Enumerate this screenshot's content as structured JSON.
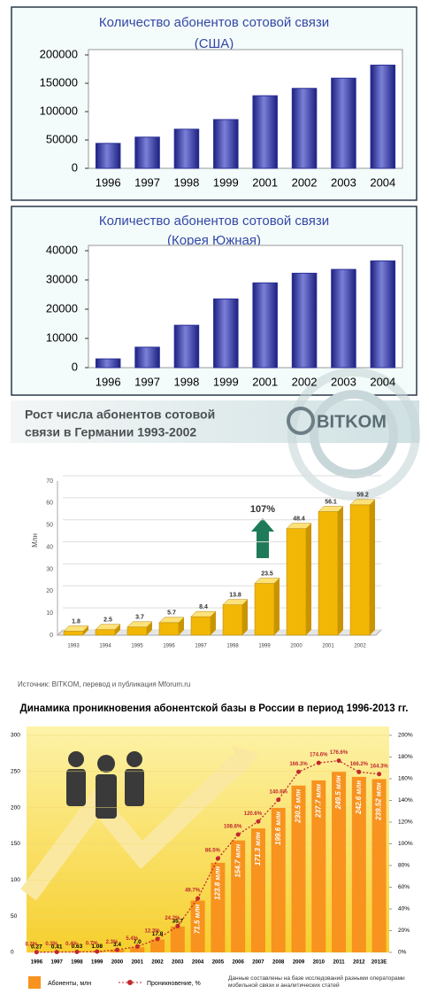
{
  "chart_data": [
    {
      "type": "bar",
      "title": "Количество абонентов сотовой связи",
      "subtitle": "(США)",
      "categories": [
        "1996",
        "1997",
        "1998",
        "1999",
        "2001",
        "2002",
        "2003",
        "2004"
      ],
      "values": [
        44000,
        55000,
        69000,
        86000,
        128000,
        141000,
        159000,
        182000
      ],
      "color": "#2a2f98",
      "ylim": [
        0,
        200000
      ],
      "yticks": [
        0,
        50000,
        100000,
        150000,
        200000
      ]
    },
    {
      "type": "bar",
      "title": "Количество абонентов сотовой связи",
      "subtitle": "(Корея Южная)",
      "categories": [
        "1996",
        "1997",
        "1998",
        "1999",
        "2001",
        "2002",
        "2003",
        "2004"
      ],
      "values": [
        3000,
        7000,
        14500,
        23500,
        29000,
        32300,
        33600,
        36500
      ],
      "color": "#2a2f98",
      "ylim": [
        0,
        40000
      ],
      "yticks": [
        0,
        10000,
        20000,
        30000,
        40000
      ]
    },
    {
      "type": "bar3d",
      "title": "Рост числа абонентов сотовой",
      "subtitle": "связи в Германии 1993-2002",
      "logo": "BITKOM",
      "ylabel": "Млн",
      "annotation": "107%",
      "source": "Источник: BITKOM, перевод и публикация Mforum.ru",
      "categories": [
        "1993",
        "1994",
        "1995",
        "1996",
        "1997",
        "1998",
        "1999",
        "2000",
        "2001",
        "2002"
      ],
      "values": [
        1.8,
        2.5,
        3.7,
        5.7,
        8.4,
        13.8,
        23.5,
        48.4,
        56.1,
        59.2
      ],
      "color": "#f2b705",
      "ylim": [
        0,
        70
      ],
      "yticks": [
        0,
        10,
        20,
        30,
        40,
        50,
        60,
        70
      ]
    },
    {
      "type": "bar-line",
      "title": "Динамика проникновения абонентской базы в России в период 1996-2013 гг.",
      "note": "Данные составлены на базе исследований разными операторами мобильной связи и аналитических статей",
      "categories": [
        "1996",
        "1997",
        "1998",
        "1999",
        "2000",
        "2001",
        "2002",
        "2003",
        "2004",
        "2005",
        "2006",
        "2007",
        "2008",
        "2009",
        "2010",
        "2011",
        "2012",
        "2013E"
      ],
      "series": [
        {
          "name": "Абоненты, млн",
          "color": "#f7931e",
          "values": [
            0.27,
            0.41,
            0.63,
            1.08,
            3.4,
            7.0,
            17.8,
            35.7,
            71.5,
            123.8,
            154.7,
            171.3,
            199.6,
            230.5,
            237.7,
            249.5,
            242.6,
            239.52
          ],
          "value_labels": [
            "0.27",
            "0.41",
            "0.63",
            "1.08",
            "3.4",
            "7.0",
            "17.8",
            "35.7",
            "71.5 млн",
            "123.8 млн",
            "154.7 млн",
            "171.3 млн",
            "199.6 млн",
            "230.5 млн",
            "237.7 млн",
            "249.5 млн",
            "242.6 млн",
            "239.52 млн"
          ]
        },
        {
          "name": "Проникновение, %",
          "color": "#c1272d",
          "axis": "y2",
          "values": [
            0.2,
            0.3,
            0.4,
            0.7,
            2.3,
            5.4,
            12.3,
            24.2,
            49.7,
            86.5,
            108.6,
            120.6,
            140.6,
            166.3,
            174.6,
            176.6,
            166.2,
            164.3
          ],
          "value_labels": [
            "0.2%",
            "0.3%",
            "0.4%",
            "0.7%",
            "2.3%",
            "5.4%",
            "12.3%",
            "24.2%",
            "49.7%",
            "86.5%",
            "108.6%",
            "120.6%",
            "140.6%",
            "166.3%",
            "174.6%",
            "176.6%",
            "166.2%",
            "164.3%"
          ]
        }
      ],
      "ylim": [
        0,
        300
      ],
      "yticks": [
        0,
        50,
        100,
        150,
        200,
        250,
        300
      ],
      "y2lim": [
        0,
        200
      ],
      "y2ticks": [
        {
          "value": 0,
          "label": "0%"
        },
        {
          "value": 20,
          "label": "20%"
        },
        {
          "value": 40,
          "label": "40%"
        },
        {
          "value": 60,
          "label": "60%"
        },
        {
          "value": 80,
          "label": "80%"
        },
        {
          "value": 100,
          "label": "100%"
        },
        {
          "value": 120,
          "label": "120%"
        },
        {
          "value": 140,
          "label": "140%"
        },
        {
          "value": 160,
          "label": "160%"
        },
        {
          "value": 180,
          "label": "180%"
        },
        {
          "value": 200,
          "label": "200%"
        }
      ]
    }
  ]
}
